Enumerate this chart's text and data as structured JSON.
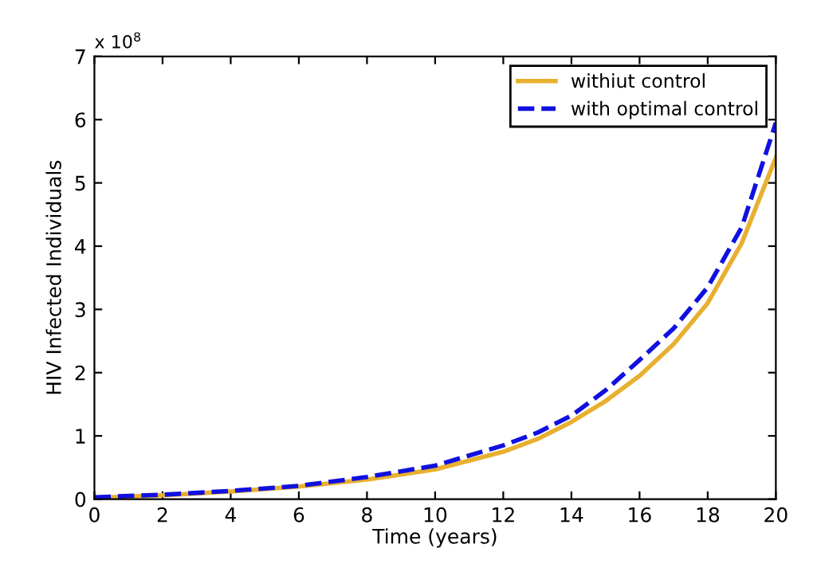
{
  "chart_data": {
    "type": "line",
    "xlabel": "Time (years)",
    "ylabel": "HIV Infected Individuals",
    "annotations": [
      "x 10$^{8}$"
    ],
    "x": [
      0,
      2,
      4,
      6,
      8,
      10,
      12,
      13,
      14,
      15,
      16,
      17,
      18,
      19,
      20
    ],
    "series": [
      {
        "name": "withiut control",
        "color": "#e8b030",
        "line_style": "solid",
        "values": [
          0.02,
          0.06,
          0.12,
          0.2,
          0.31,
          0.47,
          0.75,
          0.95,
          1.22,
          1.55,
          1.95,
          2.45,
          3.1,
          4.05,
          5.4
        ]
      },
      {
        "name": "with optimal control",
        "color": "#1010e0",
        "line_style": "dashed",
        "values": [
          0.03,
          0.07,
          0.13,
          0.21,
          0.35,
          0.53,
          0.85,
          1.05,
          1.32,
          1.72,
          2.2,
          2.7,
          3.35,
          4.3,
          5.95
        ]
      }
    ],
    "xlim": [
      0,
      20
    ],
    "ylim": [
      0,
      7
    ],
    "xticks": [
      0,
      2,
      4,
      6,
      8,
      10,
      12,
      14,
      16,
      18,
      20
    ],
    "yticks": [
      0,
      1,
      2,
      3,
      4,
      5,
      6,
      7
    ],
    "grid": false,
    "legend": "top right"
  }
}
